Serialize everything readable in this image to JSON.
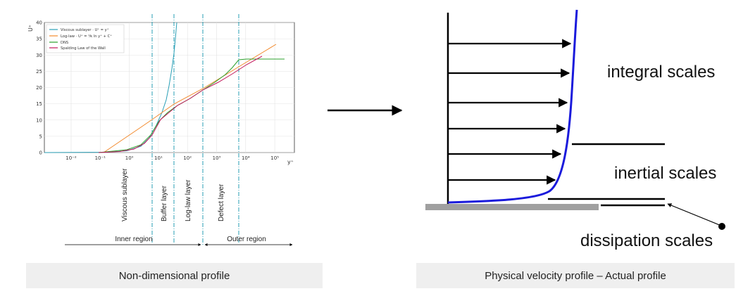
{
  "left_panel": {
    "caption": "Non-dimensional profile",
    "plot": {
      "y_axis_label": "U⁺",
      "x_axis_label": "y⁺",
      "y_ticks": [
        "0",
        "5",
        "10",
        "15",
        "20",
        "25",
        "30",
        "35",
        "40"
      ],
      "x_ticks": [
        "10⁻²",
        "10⁻¹",
        "10⁰",
        "10¹",
        "10²",
        "10³",
        "10⁴",
        "10⁵"
      ],
      "legend": [
        {
          "label": "Viscous sublayer · U⁺ = y⁺",
          "color": "#2a9fb6"
        },
        {
          "label": "Log-law · U⁺ = ¹⁄κ ln y⁺ + C⁺",
          "color": "#f28a2d"
        },
        {
          "label": "DNS",
          "color": "#2ca02c"
        },
        {
          "label": "Spalding Law of the Wall",
          "color": "#c2185b"
        }
      ],
      "region_boundaries_yplus": [
        5,
        30,
        300,
        5000
      ]
    },
    "layers": [
      "Viscous sublayer",
      "Buffer layer",
      "Log-law layer",
      "Defect layer"
    ],
    "regions": {
      "inner": "Inner region",
      "outer": "Outer region"
    }
  },
  "right_panel": {
    "caption": "Physical velocity profile – Actual profile",
    "scales": {
      "integral": "integral scales",
      "inertial": "inertial scales",
      "dissipation": "dissipation scales"
    },
    "profile_color": "#1a1adc"
  }
}
